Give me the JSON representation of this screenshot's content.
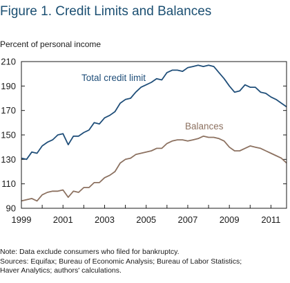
{
  "figure_title": "Figure 1. Credit Limits and Balances",
  "colors": {
    "title": "#1b4f72",
    "limit": "#1f4e79",
    "balances": "#8c7160",
    "axis": "#1a1a1a"
  },
  "notes": [
    "Note: Data exclude consumers who filed for bankruptcy.",
    "Sources: Equifax; Bureau of Economic Analysis; Bureau of Labor Statistics;",
    "Haver Analytics; authors' calculations."
  ],
  "chart_data": {
    "type": "line",
    "title": "Figure 1. Credit Limits and Balances",
    "ylabel": "Percent of personal income",
    "xlabel": "",
    "xlim": [
      1999.0,
      2011.75
    ],
    "ylim": [
      90,
      210
    ],
    "yticks": [
      90,
      110,
      130,
      150,
      170,
      190,
      210
    ],
    "xticks": [
      1999,
      2001,
      2003,
      2005,
      2007,
      2009,
      2011
    ],
    "grid": false,
    "series": [
      {
        "name": "Total credit limit",
        "x": [
          1999.0,
          1999.25,
          1999.5,
          1999.75,
          2000.0,
          2000.25,
          2000.5,
          2000.75,
          2001.0,
          2001.25,
          2001.5,
          2001.75,
          2002.0,
          2002.25,
          2002.5,
          2002.75,
          2003.0,
          2003.25,
          2003.5,
          2003.75,
          2004.0,
          2004.25,
          2004.5,
          2004.75,
          2005.0,
          2005.25,
          2005.5,
          2005.75,
          2006.0,
          2006.25,
          2006.5,
          2006.75,
          2007.0,
          2007.25,
          2007.5,
          2007.75,
          2008.0,
          2008.25,
          2008.5,
          2008.75,
          2009.0,
          2009.25,
          2009.5,
          2009.75,
          2010.0,
          2010.25,
          2010.5,
          2010.75,
          2011.0,
          2011.25,
          2011.5,
          2011.75
        ],
        "values": [
          131,
          130,
          136,
          135,
          141,
          144,
          146,
          150,
          151,
          142,
          149,
          149,
          152,
          154,
          160,
          159,
          164,
          166,
          169,
          176,
          179,
          180,
          185,
          189,
          191,
          193,
          196,
          195,
          201,
          203,
          203,
          202,
          205,
          206,
          207,
          206,
          207,
          206,
          201,
          196,
          190,
          185,
          186,
          191,
          189,
          189,
          185,
          184,
          181,
          179,
          176,
          173
        ],
        "label_position": "above"
      },
      {
        "name": "Balances",
        "x": [
          1999.0,
          1999.25,
          1999.5,
          1999.75,
          2000.0,
          2000.25,
          2000.5,
          2000.75,
          2001.0,
          2001.25,
          2001.5,
          2001.75,
          2002.0,
          2002.25,
          2002.5,
          2002.75,
          2003.0,
          2003.25,
          2003.5,
          2003.75,
          2004.0,
          2004.25,
          2004.5,
          2004.75,
          2005.0,
          2005.25,
          2005.5,
          2005.75,
          2006.0,
          2006.25,
          2006.5,
          2006.75,
          2007.0,
          2007.25,
          2007.5,
          2007.75,
          2008.0,
          2008.25,
          2008.5,
          2008.75,
          2009.0,
          2009.25,
          2009.5,
          2009.75,
          2010.0,
          2010.25,
          2010.5,
          2010.75,
          2011.0,
          2011.25,
          2011.5,
          2011.75
        ],
        "values": [
          96,
          97,
          98,
          96,
          101,
          103,
          104,
          104,
          105,
          99,
          104,
          103,
          107,
          107,
          111,
          111,
          115,
          117,
          120,
          127,
          130,
          131,
          134,
          135,
          136,
          137,
          139,
          139,
          143,
          145,
          146,
          146,
          145,
          146,
          147,
          149,
          148,
          148,
          147,
          145,
          140,
          137,
          137,
          139,
          141,
          140,
          139,
          137,
          135,
          133,
          131,
          127
        ],
        "label_position": "above"
      }
    ]
  }
}
